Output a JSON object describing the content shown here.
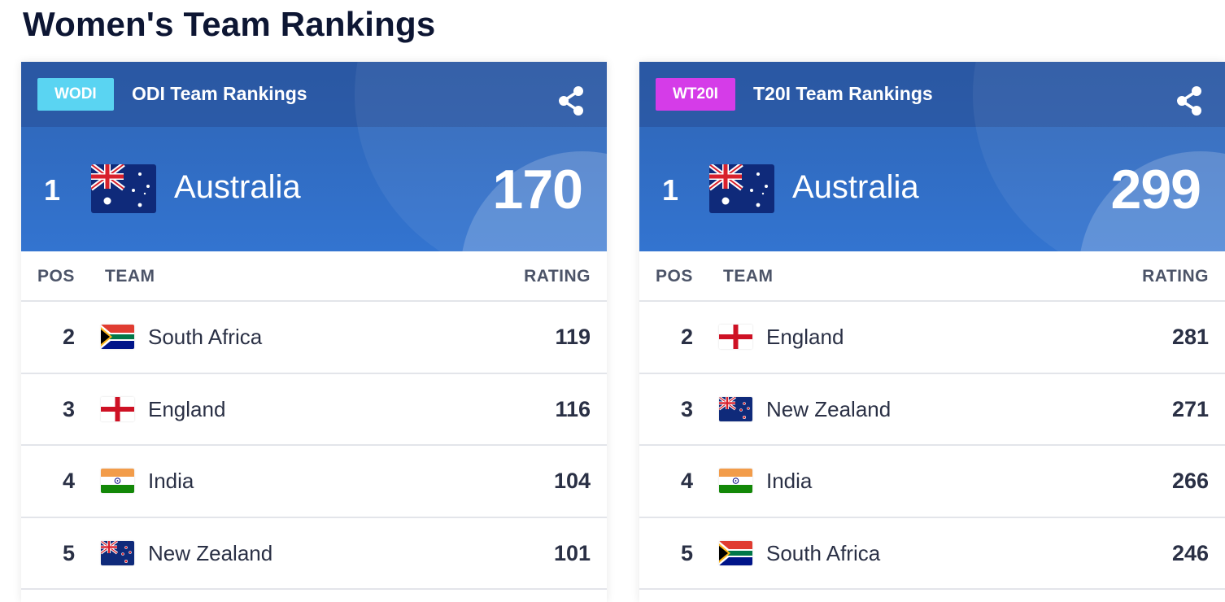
{
  "page": {
    "title": "Women's Team Rankings"
  },
  "columns": {
    "pos": "POS",
    "team": "TEAM",
    "rating": "RATING"
  },
  "cards": [
    {
      "badge": "WODI",
      "badge_color": "#5ad4f2",
      "title": "ODI Team Rankings",
      "share_icon": "share-icon",
      "leader": {
        "pos": "1",
        "team": "Australia",
        "flag": "australia-flag",
        "rating": "170"
      },
      "rows": [
        {
          "pos": "2",
          "team": "South Africa",
          "flag": "south-africa-flag",
          "rating": "119"
        },
        {
          "pos": "3",
          "team": "England",
          "flag": "england-flag",
          "rating": "116"
        },
        {
          "pos": "4",
          "team": "India",
          "flag": "india-flag",
          "rating": "104"
        },
        {
          "pos": "5",
          "team": "New Zealand",
          "flag": "new-zealand-flag",
          "rating": "101"
        }
      ]
    },
    {
      "badge": "WT20I",
      "badge_color": "#d53ce8",
      "title": "T20I Team Rankings",
      "share_icon": "share-icon",
      "leader": {
        "pos": "1",
        "team": "Australia",
        "flag": "australia-flag",
        "rating": "299"
      },
      "rows": [
        {
          "pos": "2",
          "team": "England",
          "flag": "england-flag",
          "rating": "281"
        },
        {
          "pos": "3",
          "team": "New Zealand",
          "flag": "new-zealand-flag",
          "rating": "271"
        },
        {
          "pos": "4",
          "team": "India",
          "flag": "india-flag",
          "rating": "266"
        },
        {
          "pos": "5",
          "team": "South Africa",
          "flag": "south-africa-flag",
          "rating": "246"
        }
      ]
    }
  ],
  "colors": {
    "header_blue": "#3374d0",
    "title_dark": "#0d1633",
    "text": "#2a3045"
  }
}
